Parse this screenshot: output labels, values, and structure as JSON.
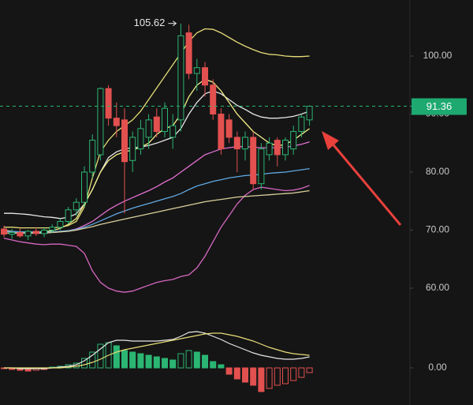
{
  "chart_data": {
    "type": "candlestick",
    "categories": [
      null,
      null,
      null,
      null,
      null,
      null,
      null,
      null,
      null,
      null,
      null,
      null,
      null,
      null,
      null,
      null,
      null,
      null,
      null,
      null,
      null,
      null,
      null,
      null,
      null,
      null,
      null,
      null,
      null,
      null,
      null,
      null,
      null,
      null,
      null,
      null,
      null,
      null,
      null
    ],
    "open": [
      70.2,
      69.3,
      69.6,
      69.0,
      69.8,
      69.4,
      70.0,
      70.5,
      71.5,
      73.5,
      74.8,
      80.0,
      83.0,
      94.4,
      89.3,
      89.0,
      82.0,
      84.0,
      86.0,
      89.5,
      87.0,
      86.0,
      89.0,
      104.0,
      97.0,
      98.0,
      95.0,
      90.0,
      89.0,
      86.0,
      84.0,
      86.0,
      78.0,
      83.0,
      85.5,
      83.0,
      84.0,
      87.0,
      89.0
    ],
    "high": [
      70.8,
      70.2,
      70.3,
      70.0,
      70.5,
      70.4,
      71.0,
      72.0,
      74.0,
      75.5,
      81.0,
      86.5,
      94.6,
      95.0,
      92.0,
      91.0,
      87.0,
      89.0,
      90.0,
      91.0,
      92.0,
      90.0,
      105.6,
      105.4,
      99.5,
      99.0,
      96.0,
      91.0,
      90.0,
      87.0,
      87.0,
      87.0,
      85.0,
      86.0,
      86.0,
      86.0,
      88.0,
      90.0,
      91.5
    ],
    "low": [
      68.8,
      68.5,
      68.7,
      68.3,
      69.0,
      68.8,
      69.5,
      70.0,
      71.0,
      72.5,
      74.0,
      79.0,
      82.0,
      88.0,
      86.0,
      72.9,
      80.0,
      83.0,
      84.0,
      86.0,
      86.0,
      84.0,
      87.0,
      96.0,
      94.0,
      93.0,
      89.0,
      83.0,
      85.0,
      80.0,
      82.0,
      77.0,
      77.0,
      82.0,
      81.0,
      82.0,
      83.0,
      86.0,
      88.0
    ],
    "close": [
      69.3,
      69.6,
      69.0,
      69.8,
      69.4,
      70.0,
      70.5,
      71.5,
      73.5,
      74.8,
      80.0,
      85.5,
      94.4,
      89.3,
      88.0,
      81.8,
      86.0,
      87.5,
      89.0,
      87.0,
      91.0,
      88.0,
      103.5,
      97.0,
      98.0,
      95.0,
      90.0,
      84.0,
      86.0,
      84.0,
      86.0,
      78.0,
      84.0,
      85.0,
      83.0,
      85.5,
      87.0,
      89.5,
      91.36
    ],
    "up_color": "#2bb673",
    "down_color": "#e2514f",
    "series": [
      {
        "color": "#e6dd78",
        "values": [
          70.5,
          70.5,
          70.4,
          70.4,
          70.4,
          70.4,
          70.4,
          70.5,
          70.8,
          71.5,
          74,
          79,
          83.5,
          85.5,
          87,
          88,
          89,
          90.5,
          92.5,
          94.5,
          96.5,
          98.5,
          100.5,
          102.5,
          104,
          104.7,
          104.6,
          104,
          103.2,
          102.4,
          101.7,
          101.1,
          100.6,
          100.3,
          100.2,
          100,
          99.9,
          99.9,
          100
        ]
      },
      {
        "color": "#d767c2",
        "values": [
          68.6,
          68.3,
          68,
          67.8,
          67.6,
          67.5,
          67.6,
          67.6,
          67.4,
          67.2,
          66,
          63,
          61,
          60,
          59.5,
          59.3,
          59.5,
          60,
          60.5,
          61,
          61.3,
          61.5,
          62,
          62.3,
          63.5,
          65.5,
          68,
          70.5,
          72.5,
          74.5,
          76,
          77,
          77.4,
          77.2,
          77,
          76.8,
          76.9,
          77.2,
          77.7
        ]
      },
      {
        "color": "#e6e6e6",
        "values": [
          72.9,
          72.9,
          72.8,
          72.7,
          72.5,
          72.3,
          72.2,
          72,
          72.2,
          72.8,
          74.5,
          77,
          80,
          82.5,
          83.5,
          84,
          84.2,
          84.3,
          84.6,
          85,
          85.5,
          86,
          87.5,
          90,
          92,
          93.5,
          94,
          93.5,
          92.5,
          91.5,
          90.8,
          90,
          89.5,
          89.3,
          89.3,
          89.4,
          89.6,
          90,
          90.5
        ]
      },
      {
        "color": "#f3ee8a",
        "values": [
          70,
          69.8,
          69.6,
          69.6,
          69.7,
          69.7,
          69.9,
          70.3,
          71,
          72,
          74.5,
          77,
          80,
          82,
          83,
          83.5,
          83.8,
          84.3,
          85,
          86.5,
          87.5,
          88,
          90,
          93,
          95,
          96,
          95.5,
          94,
          92,
          90,
          88.5,
          87,
          86,
          85,
          84.5,
          84.8,
          85.5,
          86.5,
          87.5
        ]
      },
      {
        "color": "#e06fd0",
        "values": [
          69.8,
          69.7,
          69.6,
          69.5,
          69.5,
          69.5,
          69.6,
          69.7,
          69.9,
          70.2,
          70.8,
          71.5,
          72.5,
          73.5,
          74.3,
          75,
          75.6,
          76.2,
          76.8,
          77.5,
          78.3,
          79,
          80,
          81,
          82,
          83,
          83.5,
          84,
          84.2,
          84.4,
          84.4,
          84.3,
          84.2,
          84.2,
          84.2,
          84.3,
          84.5,
          84.8,
          85.2
        ]
      },
      {
        "color": "#5fa9e3",
        "values": [
          69.8,
          69.8,
          69.7,
          69.7,
          69.7,
          69.6,
          69.7,
          69.8,
          69.9,
          70.1,
          70.5,
          71,
          71.6,
          72.2,
          72.8,
          73.3,
          73.8,
          74.2,
          74.6,
          75,
          75.4,
          75.8,
          76.3,
          77,
          77.6,
          78,
          78.4,
          78.7,
          79,
          79.2,
          79.4,
          79.5,
          79.6,
          79.8,
          79.9,
          80,
          80.2,
          80.4,
          80.6
        ]
      },
      {
        "color": "#d9d09c",
        "values": [
          69.5,
          69.5,
          69.5,
          69.5,
          69.5,
          69.5,
          69.6,
          69.7,
          69.8,
          70,
          70.3,
          70.6,
          71,
          71.3,
          71.6,
          71.9,
          72.2,
          72.5,
          72.8,
          73.1,
          73.4,
          73.7,
          74,
          74.3,
          74.6,
          74.9,
          75.1,
          75.3,
          75.5,
          75.7,
          75.8,
          75.9,
          76,
          76.1,
          76.2,
          76.3,
          76.4,
          76.6,
          76.8
        ]
      }
    ],
    "ylim": [
      55.24,
      109.66
    ],
    "yticks": [
      {
        "value": 60,
        "label": "60.00"
      },
      {
        "value": 70,
        "label": "70.00"
      },
      {
        "value": 80,
        "label": "80.00"
      },
      {
        "value": 90,
        "label": "90.00"
      },
      {
        "value": 100,
        "label": "100.00"
      }
    ],
    "last_price": 91.36,
    "max_price": 105.62,
    "macd": {
      "ylim": [
        -1.7,
        3.05
      ],
      "yticks": [
        {
          "value": 0,
          "label": "0.00"
        }
      ],
      "histogram": [
        -0.05,
        -0.1,
        -0.15,
        -0.2,
        -0.15,
        -0.1,
        0.05,
        0.1,
        0.2,
        0.3,
        0.6,
        1.0,
        1.5,
        1.6,
        1.4,
        1.1,
        1.0,
        0.9,
        0.8,
        0.7,
        0.6,
        0.5,
        0.9,
        1.1,
        1.0,
        0.8,
        0.4,
        0.2,
        -0.4,
        -0.7,
        -0.9,
        -1.1,
        -1.5,
        -1.3,
        -1.1,
        -1.0,
        -0.8,
        -0.6,
        -0.3
      ],
      "lines": [
        {
          "color": "#e6e6e6",
          "values": [
            0,
            0,
            -0.05,
            -0.05,
            -0.05,
            -0.05,
            0,
            0.05,
            0.1,
            0.2,
            0.45,
            0.8,
            1.2,
            1.6,
            1.75,
            1.75,
            1.7,
            1.7,
            1.7,
            1.7,
            1.75,
            1.8,
            2.0,
            2.25,
            2.3,
            2.2,
            2.0,
            1.8,
            1.55,
            1.35,
            1.15,
            0.95,
            0.8,
            0.7,
            0.6,
            0.55,
            0.55,
            0.6,
            0.7
          ]
        },
        {
          "color": "#e6dd78",
          "values": [
            0,
            0,
            0,
            0,
            0,
            0,
            0,
            0,
            0.05,
            0.1,
            0.2,
            0.35,
            0.55,
            0.8,
            1.0,
            1.15,
            1.25,
            1.35,
            1.45,
            1.55,
            1.65,
            1.75,
            1.85,
            1.95,
            2.05,
            2.15,
            2.2,
            2.2,
            2.1,
            2.0,
            1.85,
            1.7,
            1.5,
            1.3,
            1.15,
            1.0,
            0.9,
            0.85,
            0.8
          ]
        }
      ]
    }
  }
}
